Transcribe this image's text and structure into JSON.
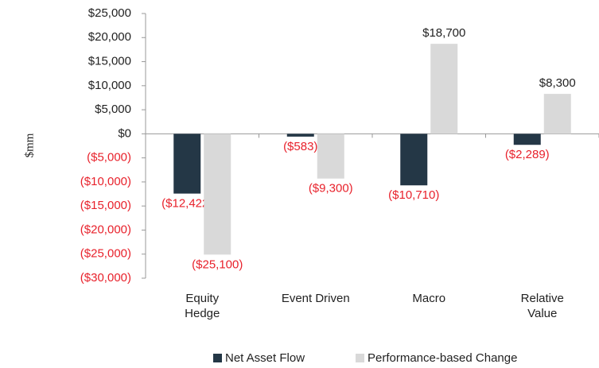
{
  "chart_data": {
    "type": "bar",
    "y_label": "$mm",
    "categories": [
      "Equity Hedge",
      "Event Driven",
      "Macro",
      "Relative Value"
    ],
    "series": [
      {
        "name": "Net Asset Flow",
        "color": "#243746",
        "values": [
          -12422,
          -583,
          -10710,
          -2289
        ],
        "value_labels": [
          "($12,422)",
          "($583)",
          "($10,710)",
          "($2,289)"
        ]
      },
      {
        "name": "Performance-based Change",
        "color": "#d9d9d9",
        "values": [
          -25100,
          -9300,
          18700,
          8300
        ],
        "value_labels": [
          "($25,100)",
          "($9,300)",
          "$18,700",
          "$8,300"
        ]
      }
    ],
    "ylim": [
      -30000,
      25000
    ],
    "yticks": [
      {
        "value": -30000,
        "label": "($30,000)"
      },
      {
        "value": -25000,
        "label": "($25,000)"
      },
      {
        "value": -20000,
        "label": "($20,000)"
      },
      {
        "value": -15000,
        "label": "($15,000)"
      },
      {
        "value": -10000,
        "label": "($10,000)"
      },
      {
        "value": -5000,
        "label": "($5,000)"
      },
      {
        "value": 0,
        "label": "$0"
      },
      {
        "value": 5000,
        "label": "$5,000"
      },
      {
        "value": 10000,
        "label": "$10,000"
      },
      {
        "value": 15000,
        "label": "$15,000"
      },
      {
        "value": 20000,
        "label": "$20,000"
      },
      {
        "value": 25000,
        "label": "$25,000"
      }
    ],
    "negative_color": "#e8212b",
    "grid": false,
    "legend": "bottom"
  }
}
